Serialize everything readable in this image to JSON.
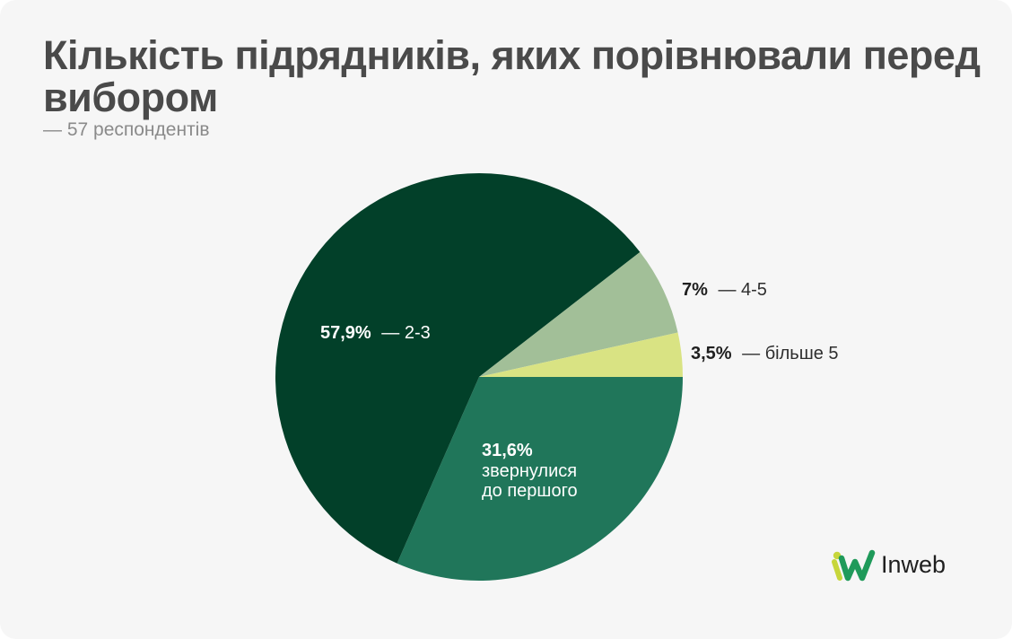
{
  "header": {
    "title": "Кількість підрядників, яких порівнювали перед вибором",
    "subtitle": "— 57 респондентів"
  },
  "brand": {
    "name": "Inweb"
  },
  "colors": {
    "background": "#f6f6f6",
    "slice_2_3": "#024029",
    "slice_4_5": "#a2bf98",
    "slice_more5": "#d9e383",
    "slice_first": "#20765a"
  },
  "labels": {
    "s23": {
      "pct": "57,9%",
      "text": "— 2-3"
    },
    "s45": {
      "pct": "7%",
      "text": "— 4-5"
    },
    "s5p": {
      "pct": "3,5%",
      "text": "— більше 5"
    },
    "sfirst": {
      "pct": "31,6%",
      "line1": "звернулися",
      "line2": "до першого"
    }
  },
  "chart_data": {
    "type": "pie",
    "title": "Кількість підрядників, яких порівнювали перед вибором",
    "subtitle": "— 57 респондентів",
    "slices": [
      {
        "label": "звернулися до першого",
        "value": 31.6,
        "color": "#20765a"
      },
      {
        "label": "2-3",
        "value": 57.9,
        "color": "#024029"
      },
      {
        "label": "4-5",
        "value": 7.0,
        "color": "#a2bf98"
      },
      {
        "label": "більше 5",
        "value": 3.5,
        "color": "#d9e383"
      }
    ]
  }
}
